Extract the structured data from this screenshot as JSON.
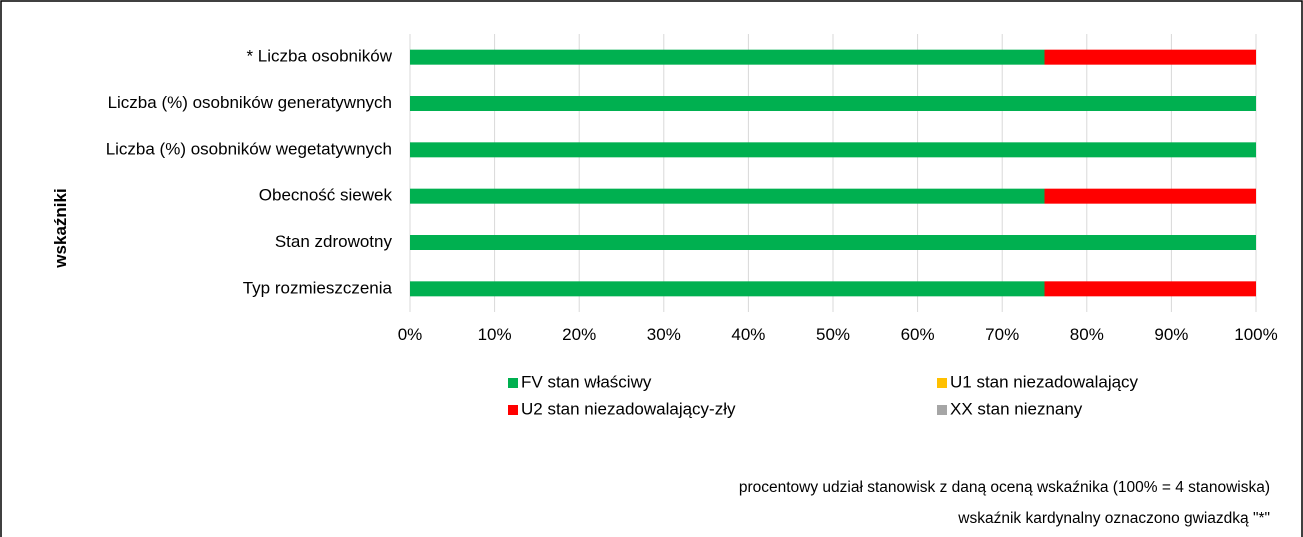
{
  "chart_data": {
    "type": "bar",
    "orientation": "horizontal",
    "stacked": true,
    "ylabel": "wskaźniki",
    "categories": [
      "* Liczba osobników",
      "Liczba (%) osobników generatywnych",
      "Liczba (%) osobników wegetatywnych",
      "Obecność siewek",
      "Stan zdrowotny",
      "Typ rozmieszczenia"
    ],
    "series": [
      {
        "name": "FV stan właściwy",
        "color": "#00b050",
        "values": [
          75,
          100,
          100,
          75,
          100,
          75
        ]
      },
      {
        "name": "U1 stan niezadowalający",
        "color": "#ffc000",
        "values": [
          0,
          0,
          0,
          0,
          0,
          0
        ]
      },
      {
        "name": "U2 stan niezadowalający-zły",
        "color": "#ff0000",
        "values": [
          25,
          0,
          0,
          25,
          0,
          25
        ]
      },
      {
        "name": "XX stan nieznany",
        "color": "#a6a6a6",
        "values": [
          0,
          0,
          0,
          0,
          0,
          0
        ]
      }
    ],
    "xlim": [
      0,
      100
    ],
    "xticks": [
      "0%",
      "10%",
      "20%",
      "30%",
      "40%",
      "50%",
      "60%",
      "70%",
      "80%",
      "90%",
      "100%"
    ],
    "grid": true,
    "legend_position": "bottom",
    "notes": [
      "procentowy udział stanowisk z daną oceną wskaźnika (100% = 4 stanowiska)",
      "wskaźnik kardynalny oznaczono gwiazdką \"*\""
    ]
  }
}
